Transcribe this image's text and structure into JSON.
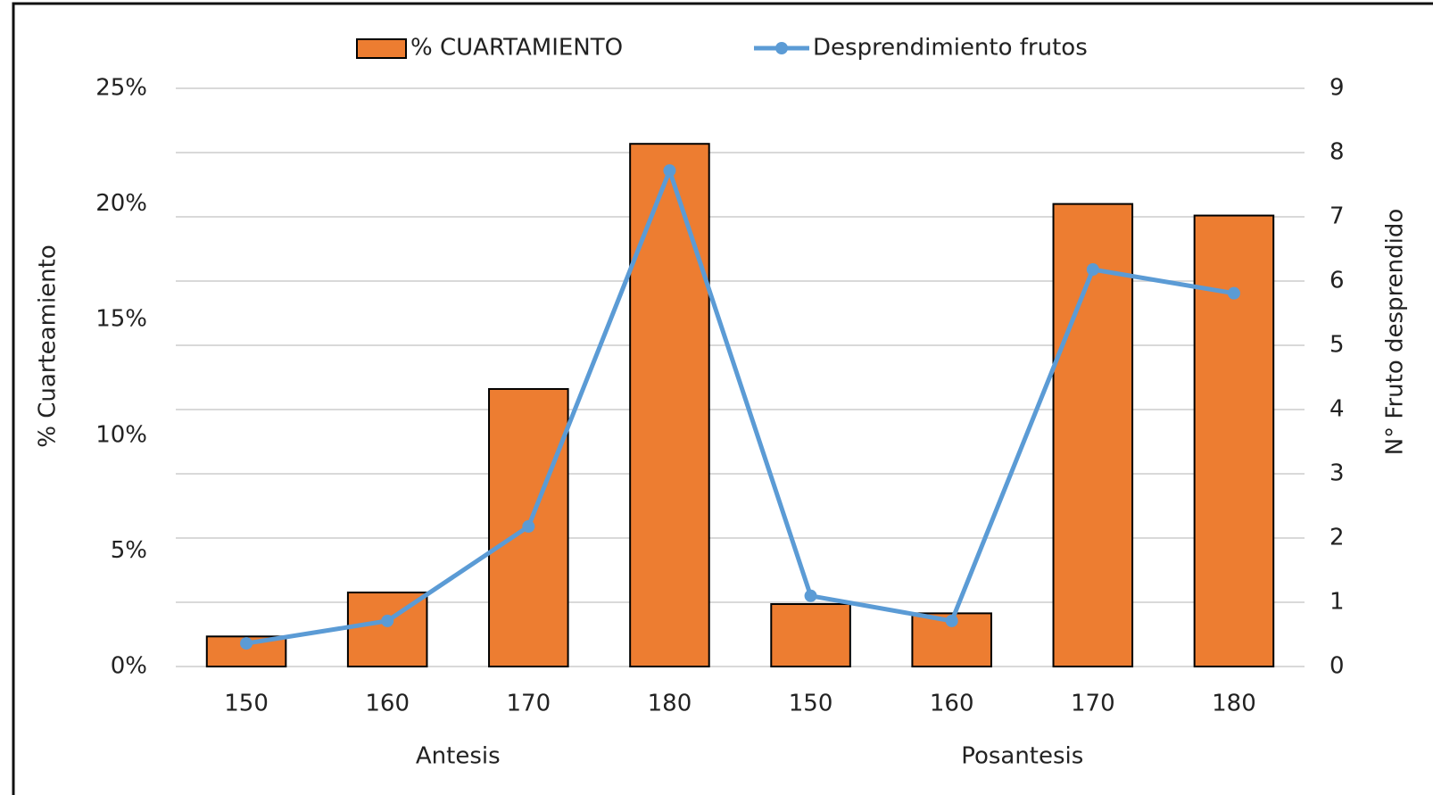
{
  "chart_data": {
    "type": "bar_line",
    "y_label": "% Cuarteamiento",
    "y2_label": "N° Fruto desprendido",
    "categories": [
      "150",
      "160",
      "170",
      "180",
      "150",
      "160",
      "170",
      "180"
    ],
    "group_labels": [
      "Antesis",
      "Posantesis"
    ],
    "series": [
      {
        "name": "% CUARTAMIENTO",
        "type": "bar",
        "color": "#ed7d31",
        "values": [
          1.3,
          3.2,
          12.0,
          22.6,
          2.7,
          2.3,
          20.0,
          19.5
        ]
      },
      {
        "name": "Desprendimiento frutos",
        "type": "line",
        "axis": "y2",
        "color": "#5b9bd5",
        "values": [
          0.36,
          0.71,
          2.18,
          7.72,
          1.1,
          0.71,
          6.18,
          5.81
        ]
      }
    ],
    "ylim": [
      0,
      25
    ],
    "yticks": [
      {
        "value": 0,
        "label": "0%"
      },
      {
        "value": 5,
        "label": "5%"
      },
      {
        "value": 10,
        "label": "10%"
      },
      {
        "value": 15,
        "label": "15%"
      },
      {
        "value": 20,
        "label": "20%"
      },
      {
        "value": 25,
        "label": "25%"
      }
    ],
    "y2lim": [
      0,
      9
    ],
    "y2ticks": [
      0,
      1,
      2,
      3,
      4,
      5,
      6,
      7,
      8,
      9
    ],
    "grid": true,
    "legend": "top"
  }
}
